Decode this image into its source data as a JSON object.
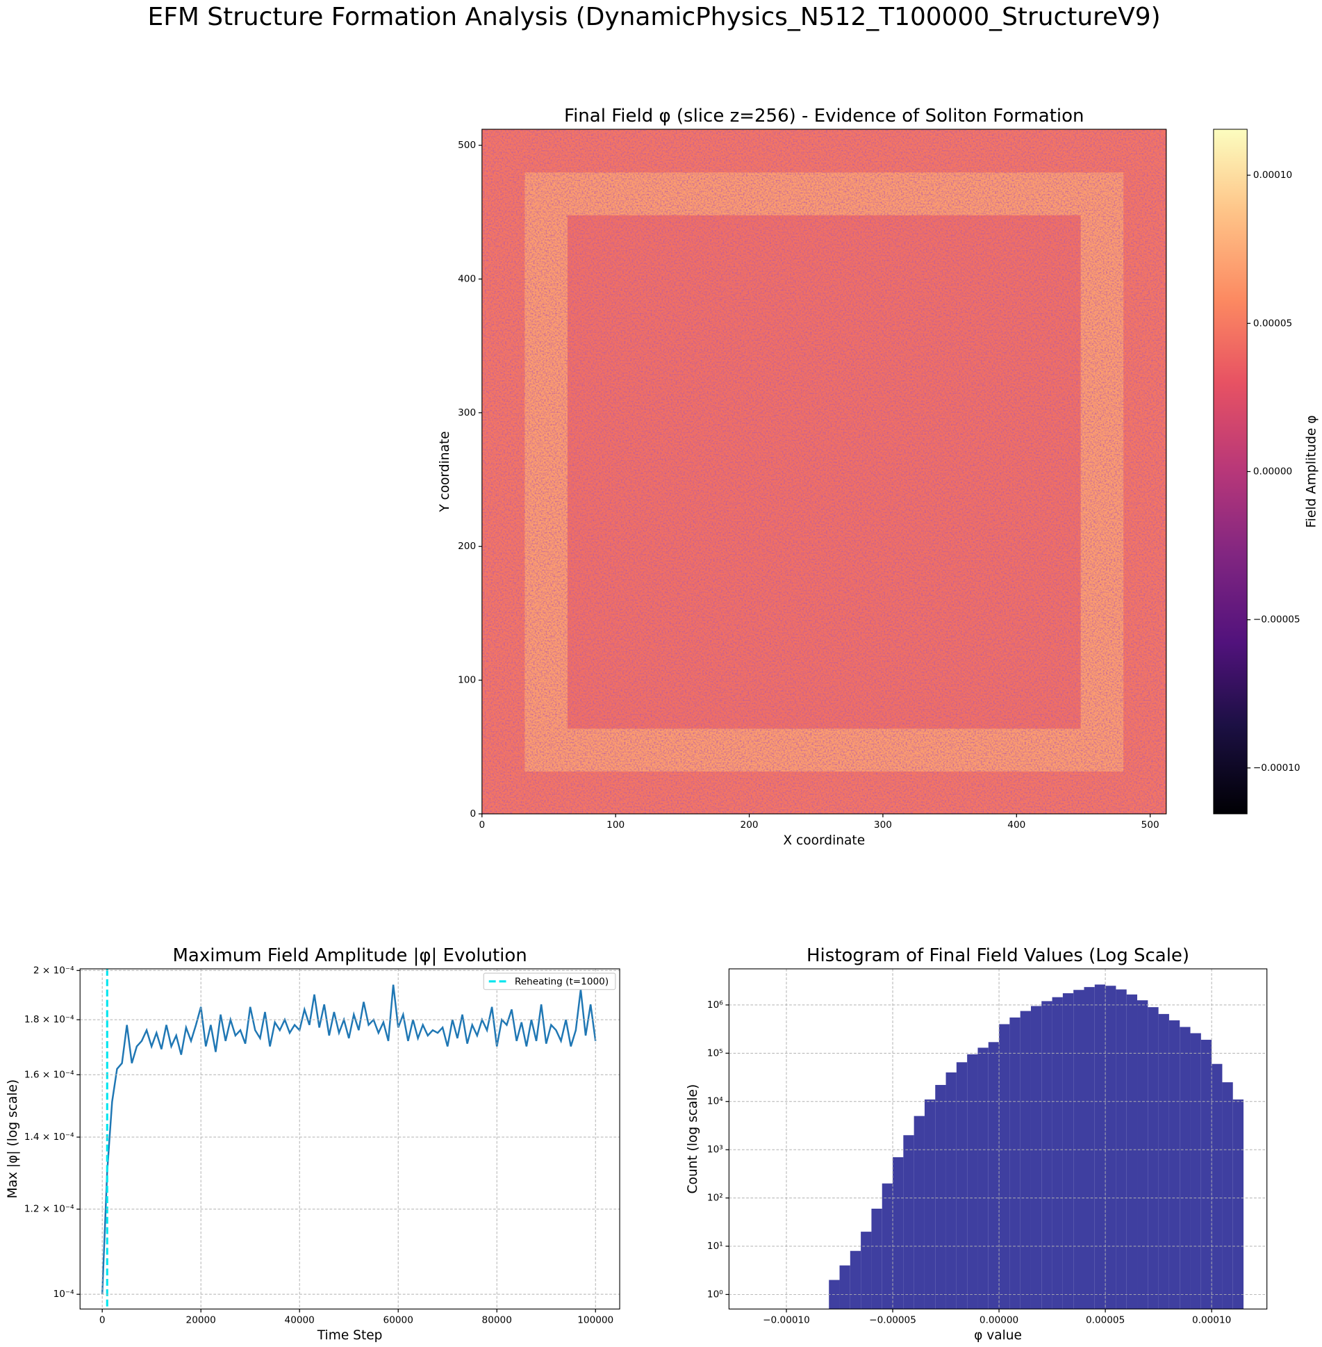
{
  "title": "EFM Structure Formation Analysis (DynamicPhysics_N512_T100000_StructureV9)",
  "chart_data": [
    {
      "type": "heatmap",
      "title": "Final Field φ (slice z=256) - Evidence of Soliton Formation",
      "x_label": "X coordinate",
      "y_label": "Y coordinate",
      "xlim": [
        0,
        512
      ],
      "ylim": [
        0,
        512
      ],
      "xticks": [
        0,
        100,
        200,
        300,
        400,
        500
      ],
      "yticks": [
        0,
        100,
        200,
        300,
        400,
        500
      ],
      "colormap": "magma",
      "clim": [
        -0.0001155,
        0.0001155
      ],
      "colorbar_label": "Field Amplitude φ",
      "colorbar_ticks": [
        {
          "value": -0.0001,
          "label": "−0.00010"
        },
        {
          "value": -5e-05,
          "label": "−0.00005"
        },
        {
          "value": 0,
          "label": "0.00000"
        },
        {
          "value": 5e-05,
          "label": "0.00005"
        },
        {
          "value": 0.0001,
          "label": "0.00010"
        }
      ],
      "z": [
        [
          4.8e-05,
          4.8e-05,
          4.8e-05,
          4.8e-05,
          4.8e-05,
          4.8e-05,
          4.8e-05,
          4.8e-05,
          4.8e-05,
          4.8e-05,
          4.8e-05,
          4.8e-05,
          4.8e-05,
          4.8e-05,
          4.8e-05,
          4.8e-05
        ],
        [
          4.8e-05,
          6.8e-05,
          6.8e-05,
          6.8e-05,
          6.8e-05,
          6.8e-05,
          6.8e-05,
          6.8e-05,
          6.8e-05,
          6.8e-05,
          6.8e-05,
          6.8e-05,
          6.8e-05,
          6.8e-05,
          6.8e-05,
          4.8e-05
        ],
        [
          4.8e-05,
          6.8e-05,
          4.5e-05,
          4.5e-05,
          4.5e-05,
          4.5e-05,
          4.5e-05,
          4.5e-05,
          4.5e-05,
          4.5e-05,
          4.5e-05,
          4.5e-05,
          4.5e-05,
          4.5e-05,
          6.8e-05,
          4.8e-05
        ],
        [
          4.8e-05,
          6.8e-05,
          4.5e-05,
          4.5e-05,
          4.5e-05,
          4.5e-05,
          4.5e-05,
          4.5e-05,
          4.5e-05,
          4.5e-05,
          4.5e-05,
          4.5e-05,
          4.5e-05,
          4.5e-05,
          6.8e-05,
          4.8e-05
        ],
        [
          4.8e-05,
          6.8e-05,
          4.5e-05,
          4.5e-05,
          4.5e-05,
          4.5e-05,
          4.5e-05,
          4.5e-05,
          4.5e-05,
          4.5e-05,
          4.5e-05,
          4.5e-05,
          4.5e-05,
          4.5e-05,
          6.8e-05,
          4.8e-05
        ],
        [
          4.8e-05,
          6.8e-05,
          4.5e-05,
          4.5e-05,
          4.5e-05,
          4.5e-05,
          4.5e-05,
          4.5e-05,
          4.5e-05,
          4.5e-05,
          4.5e-05,
          4.5e-05,
          4.5e-05,
          4.5e-05,
          6.8e-05,
          4.8e-05
        ],
        [
          4.8e-05,
          6.8e-05,
          4.5e-05,
          4.5e-05,
          4.5e-05,
          4.5e-05,
          4.5e-05,
          4.5e-05,
          4.5e-05,
          4.5e-05,
          4.5e-05,
          4.5e-05,
          4.5e-05,
          4.5e-05,
          6.8e-05,
          4.8e-05
        ],
        [
          4.8e-05,
          6.8e-05,
          4.5e-05,
          4.5e-05,
          4.5e-05,
          4.5e-05,
          4.5e-05,
          4.5e-05,
          4.5e-05,
          4.5e-05,
          4.5e-05,
          4.5e-05,
          4.5e-05,
          4.5e-05,
          6.8e-05,
          4.8e-05
        ],
        [
          4.8e-05,
          6.8e-05,
          4.5e-05,
          4.5e-05,
          4.5e-05,
          4.5e-05,
          4.5e-05,
          4.5e-05,
          4.5e-05,
          4.5e-05,
          4.5e-05,
          4.5e-05,
          4.5e-05,
          4.5e-05,
          6.8e-05,
          4.8e-05
        ],
        [
          4.8e-05,
          6.8e-05,
          4.5e-05,
          4.5e-05,
          4.5e-05,
          4.5e-05,
          4.5e-05,
          4.5e-05,
          4.5e-05,
          4.5e-05,
          4.5e-05,
          4.5e-05,
          4.5e-05,
          4.5e-05,
          6.8e-05,
          4.8e-05
        ],
        [
          4.8e-05,
          6.8e-05,
          4.5e-05,
          4.5e-05,
          4.5e-05,
          4.5e-05,
          4.5e-05,
          4.5e-05,
          4.5e-05,
          4.5e-05,
          4.5e-05,
          4.5e-05,
          4.5e-05,
          4.5e-05,
          6.8e-05,
          4.8e-05
        ],
        [
          4.8e-05,
          6.8e-05,
          4.5e-05,
          4.5e-05,
          4.5e-05,
          4.5e-05,
          4.5e-05,
          4.5e-05,
          4.5e-05,
          4.5e-05,
          4.5e-05,
          4.5e-05,
          4.5e-05,
          4.5e-05,
          6.8e-05,
          4.8e-05
        ],
        [
          4.8e-05,
          6.8e-05,
          4.5e-05,
          4.5e-05,
          4.5e-05,
          4.5e-05,
          4.5e-05,
          4.5e-05,
          4.5e-05,
          4.5e-05,
          4.5e-05,
          4.5e-05,
          4.5e-05,
          4.5e-05,
          6.8e-05,
          4.8e-05
        ],
        [
          4.8e-05,
          6.8e-05,
          4.5e-05,
          4.5e-05,
          4.5e-05,
          4.5e-05,
          4.5e-05,
          4.5e-05,
          4.5e-05,
          4.5e-05,
          4.5e-05,
          4.5e-05,
          4.5e-05,
          4.5e-05,
          6.8e-05,
          4.8e-05
        ],
        [
          4.8e-05,
          6.8e-05,
          6.8e-05,
          6.8e-05,
          6.8e-05,
          6.8e-05,
          6.8e-05,
          6.8e-05,
          6.8e-05,
          6.8e-05,
          6.8e-05,
          6.8e-05,
          6.8e-05,
          6.8e-05,
          6.8e-05,
          4.8e-05
        ],
        [
          4.8e-05,
          4.8e-05,
          4.8e-05,
          4.8e-05,
          4.8e-05,
          4.8e-05,
          4.8e-05,
          4.8e-05,
          4.8e-05,
          4.8e-05,
          4.8e-05,
          4.8e-05,
          4.8e-05,
          4.8e-05,
          4.8e-05,
          4.8e-05
        ]
      ]
    },
    {
      "type": "line",
      "title": "Maximum Field Amplitude |φ| Evolution",
      "x_label": "Time Step",
      "y_label": "Max |φ| (log scale)",
      "xlim": [
        -4500,
        104900
      ],
      "ylim": [
        9.69e-05,
        0.0002007
      ],
      "ylog": true,
      "grid": true,
      "xticks": [
        0,
        20000,
        40000,
        60000,
        80000,
        100000
      ],
      "yticks": [
        {
          "value": 0.0001,
          "label": "10⁻⁴"
        },
        {
          "value": 0.00012,
          "label": "1.2 × 10⁻⁴"
        },
        {
          "value": 0.00014,
          "label": "1.4 × 10⁻⁴"
        },
        {
          "value": 0.00016,
          "label": "1.6 × 10⁻⁴"
        },
        {
          "value": 0.00018,
          "label": "1.8 × 10⁻⁴"
        },
        {
          "value": 0.0002,
          "label": "2 × 10⁻⁴"
        }
      ],
      "legend": "upper right",
      "vline": {
        "x": 1000,
        "label": "Reheating (t=1000)",
        "color": "#00e5ee"
      },
      "x": [
        0,
        1000,
        2000,
        3000,
        4000,
        5000,
        6000,
        7000,
        8000,
        9000,
        10000,
        11000,
        12000,
        13000,
        14000,
        15000,
        16000,
        17000,
        18000,
        19000,
        20000,
        21000,
        22000,
        23000,
        24000,
        25000,
        26000,
        27000,
        28000,
        29000,
        30000,
        31000,
        32000,
        33000,
        34000,
        35000,
        36000,
        37000,
        38000,
        39000,
        40000,
        41000,
        42000,
        43000,
        44000,
        45000,
        46000,
        47000,
        48000,
        49000,
        50000,
        51000,
        52000,
        53000,
        54000,
        55000,
        56000,
        57000,
        58000,
        59000,
        60000,
        61000,
        62000,
        63000,
        64000,
        65000,
        66000,
        67000,
        68000,
        69000,
        70000,
        71000,
        72000,
        73000,
        74000,
        75000,
        76000,
        77000,
        78000,
        79000,
        80000,
        81000,
        82000,
        83000,
        84000,
        85000,
        86000,
        87000,
        88000,
        89000,
        90000,
        91000,
        92000,
        93000,
        94000,
        95000,
        96000,
        97000,
        98000,
        99000,
        100000
      ],
      "series": [
        {
          "color": "#1f77b4",
          "values": [
            0.0001,
            0.00013,
            0.000151,
            0.000162,
            0.000164,
            0.000178,
            0.000164,
            0.00017,
            0.000172,
            0.000176,
            0.00017,
            0.000175,
            0.000169,
            0.000178,
            0.00017,
            0.000174,
            0.000167,
            0.000177,
            0.000172,
            0.000178,
            0.000185,
            0.00017,
            0.000178,
            0.000168,
            0.000182,
            0.000172,
            0.00018,
            0.000174,
            0.000176,
            0.000171,
            0.000185,
            0.000176,
            0.000173,
            0.000183,
            0.00017,
            0.000179,
            0.000176,
            0.00018,
            0.000175,
            0.000178,
            0.000176,
            0.000184,
            0.000178,
            0.00019,
            0.000177,
            0.000186,
            0.000174,
            0.000183,
            0.000175,
            0.00018,
            0.000173,
            0.000182,
            0.000176,
            0.000187,
            0.000178,
            0.00018,
            0.000175,
            0.000179,
            0.000172,
            0.000194,
            0.000177,
            0.000182,
            0.000172,
            0.00018,
            0.000173,
            0.000178,
            0.000174,
            0.000176,
            0.000175,
            0.000177,
            0.00017,
            0.00018,
            0.000173,
            0.000182,
            0.000171,
            0.000178,
            0.000174,
            0.00018,
            0.000176,
            0.000185,
            0.00017,
            0.00018,
            0.000178,
            0.000184,
            0.000172,
            0.000179,
            0.00017,
            0.00018,
            0.000172,
            0.000186,
            0.000171,
            0.000178,
            0.000176,
            0.000172,
            0.00018,
            0.00017,
            0.000176,
            0.000192,
            0.000174,
            0.000186,
            0.000172
          ]
        }
      ]
    },
    {
      "type": "histogram",
      "title": "Histogram of Final Field Values (Log Scale)",
      "x_label": "φ value",
      "y_label": "Count (log scale)",
      "xlim": [
        -0.000127,
        0.000126
      ],
      "ylim": [
        0.5,
        5600000
      ],
      "ylog": true,
      "grid": true,
      "color": "#3f3fa0",
      "xticks": [
        {
          "value": -0.0001,
          "label": "−0.00010"
        },
        {
          "value": -5e-05,
          "label": "−0.00005"
        },
        {
          "value": 0,
          "label": "0.00000"
        },
        {
          "value": 5e-05,
          "label": "0.00005"
        },
        {
          "value": 0.0001,
          "label": "0.00010"
        }
      ],
      "yticks": [
        {
          "value": 1,
          "label": "10⁰"
        },
        {
          "value": 10,
          "label": "10¹"
        },
        {
          "value": 100,
          "label": "10²"
        },
        {
          "value": 1000,
          "label": "10³"
        },
        {
          "value": 10000,
          "label": "10⁴"
        },
        {
          "value": 100000,
          "label": "10⁵"
        },
        {
          "value": 1000000,
          "label": "10⁶"
        }
      ],
      "bins": [
        -8e-05,
        -7.5e-05,
        -7e-05,
        -6.5e-05,
        -6e-05,
        -5.5e-05,
        -5e-05,
        -4.5e-05,
        -4e-05,
        -3.5e-05,
        -3e-05,
        -2.5e-05,
        -2e-05,
        -1.5e-05,
        -1e-05,
        -5e-06,
        0,
        5e-06,
        1e-05,
        1.5e-05,
        2e-05,
        2.5e-05,
        3e-05,
        3.5e-05,
        4e-05,
        4.5e-05,
        5e-05,
        5.5e-05,
        6e-05,
        6.5e-05,
        7e-05,
        7.5e-05,
        8e-05,
        8.5e-05,
        9e-05,
        9.5e-05,
        0.0001,
        0.000105,
        0.00011,
        0.000115
      ],
      "values": [
        2,
        4,
        8,
        20,
        60,
        200,
        700,
        2000,
        5000,
        11000,
        22000,
        40000,
        65000,
        95000,
        130000,
        170000,
        400000,
        550000,
        750000,
        950000,
        1200000,
        1450000,
        1750000,
        2050000,
        2350000,
        2650000,
        2500000,
        2100000,
        1650000,
        1250000,
        900000,
        650000,
        480000,
        350000,
        260000,
        190000,
        60000,
        25000,
        11000
      ]
    }
  ]
}
